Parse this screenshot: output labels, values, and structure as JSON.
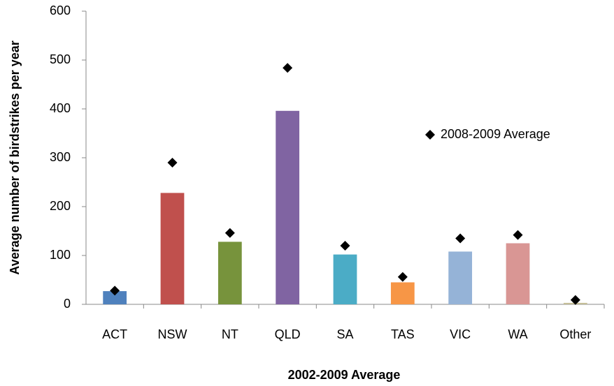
{
  "chart_data": {
    "type": "bar",
    "xlabel": "2002-2009 Average",
    "ylabel": "Average number of birdstrikes per year",
    "categories": [
      "ACT",
      "NSW",
      "NT",
      "QLD",
      "SA",
      "TAS",
      "VIC",
      "WA",
      "Other"
    ],
    "series": [
      {
        "type": "bar",
        "colors": [
          "#4f81bd",
          "#c0504d",
          "#77933c",
          "#8064a2",
          "#4bacc6",
          "#f79646",
          "#95b3d7",
          "#d99694",
          "#c4bd97"
        ],
        "values": [
          27,
          228,
          128,
          396,
          102,
          45,
          108,
          125,
          3
        ]
      },
      {
        "type": "scatter",
        "name": "2008-2009 Average",
        "color": "#000000",
        "values": [
          28,
          290,
          146,
          484,
          120,
          56,
          135,
          142,
          9
        ]
      }
    ],
    "ylim": [
      0,
      600
    ],
    "yticks": [
      0,
      100,
      200,
      300,
      400,
      500,
      600
    ],
    "grid": false,
    "legend": "right"
  }
}
